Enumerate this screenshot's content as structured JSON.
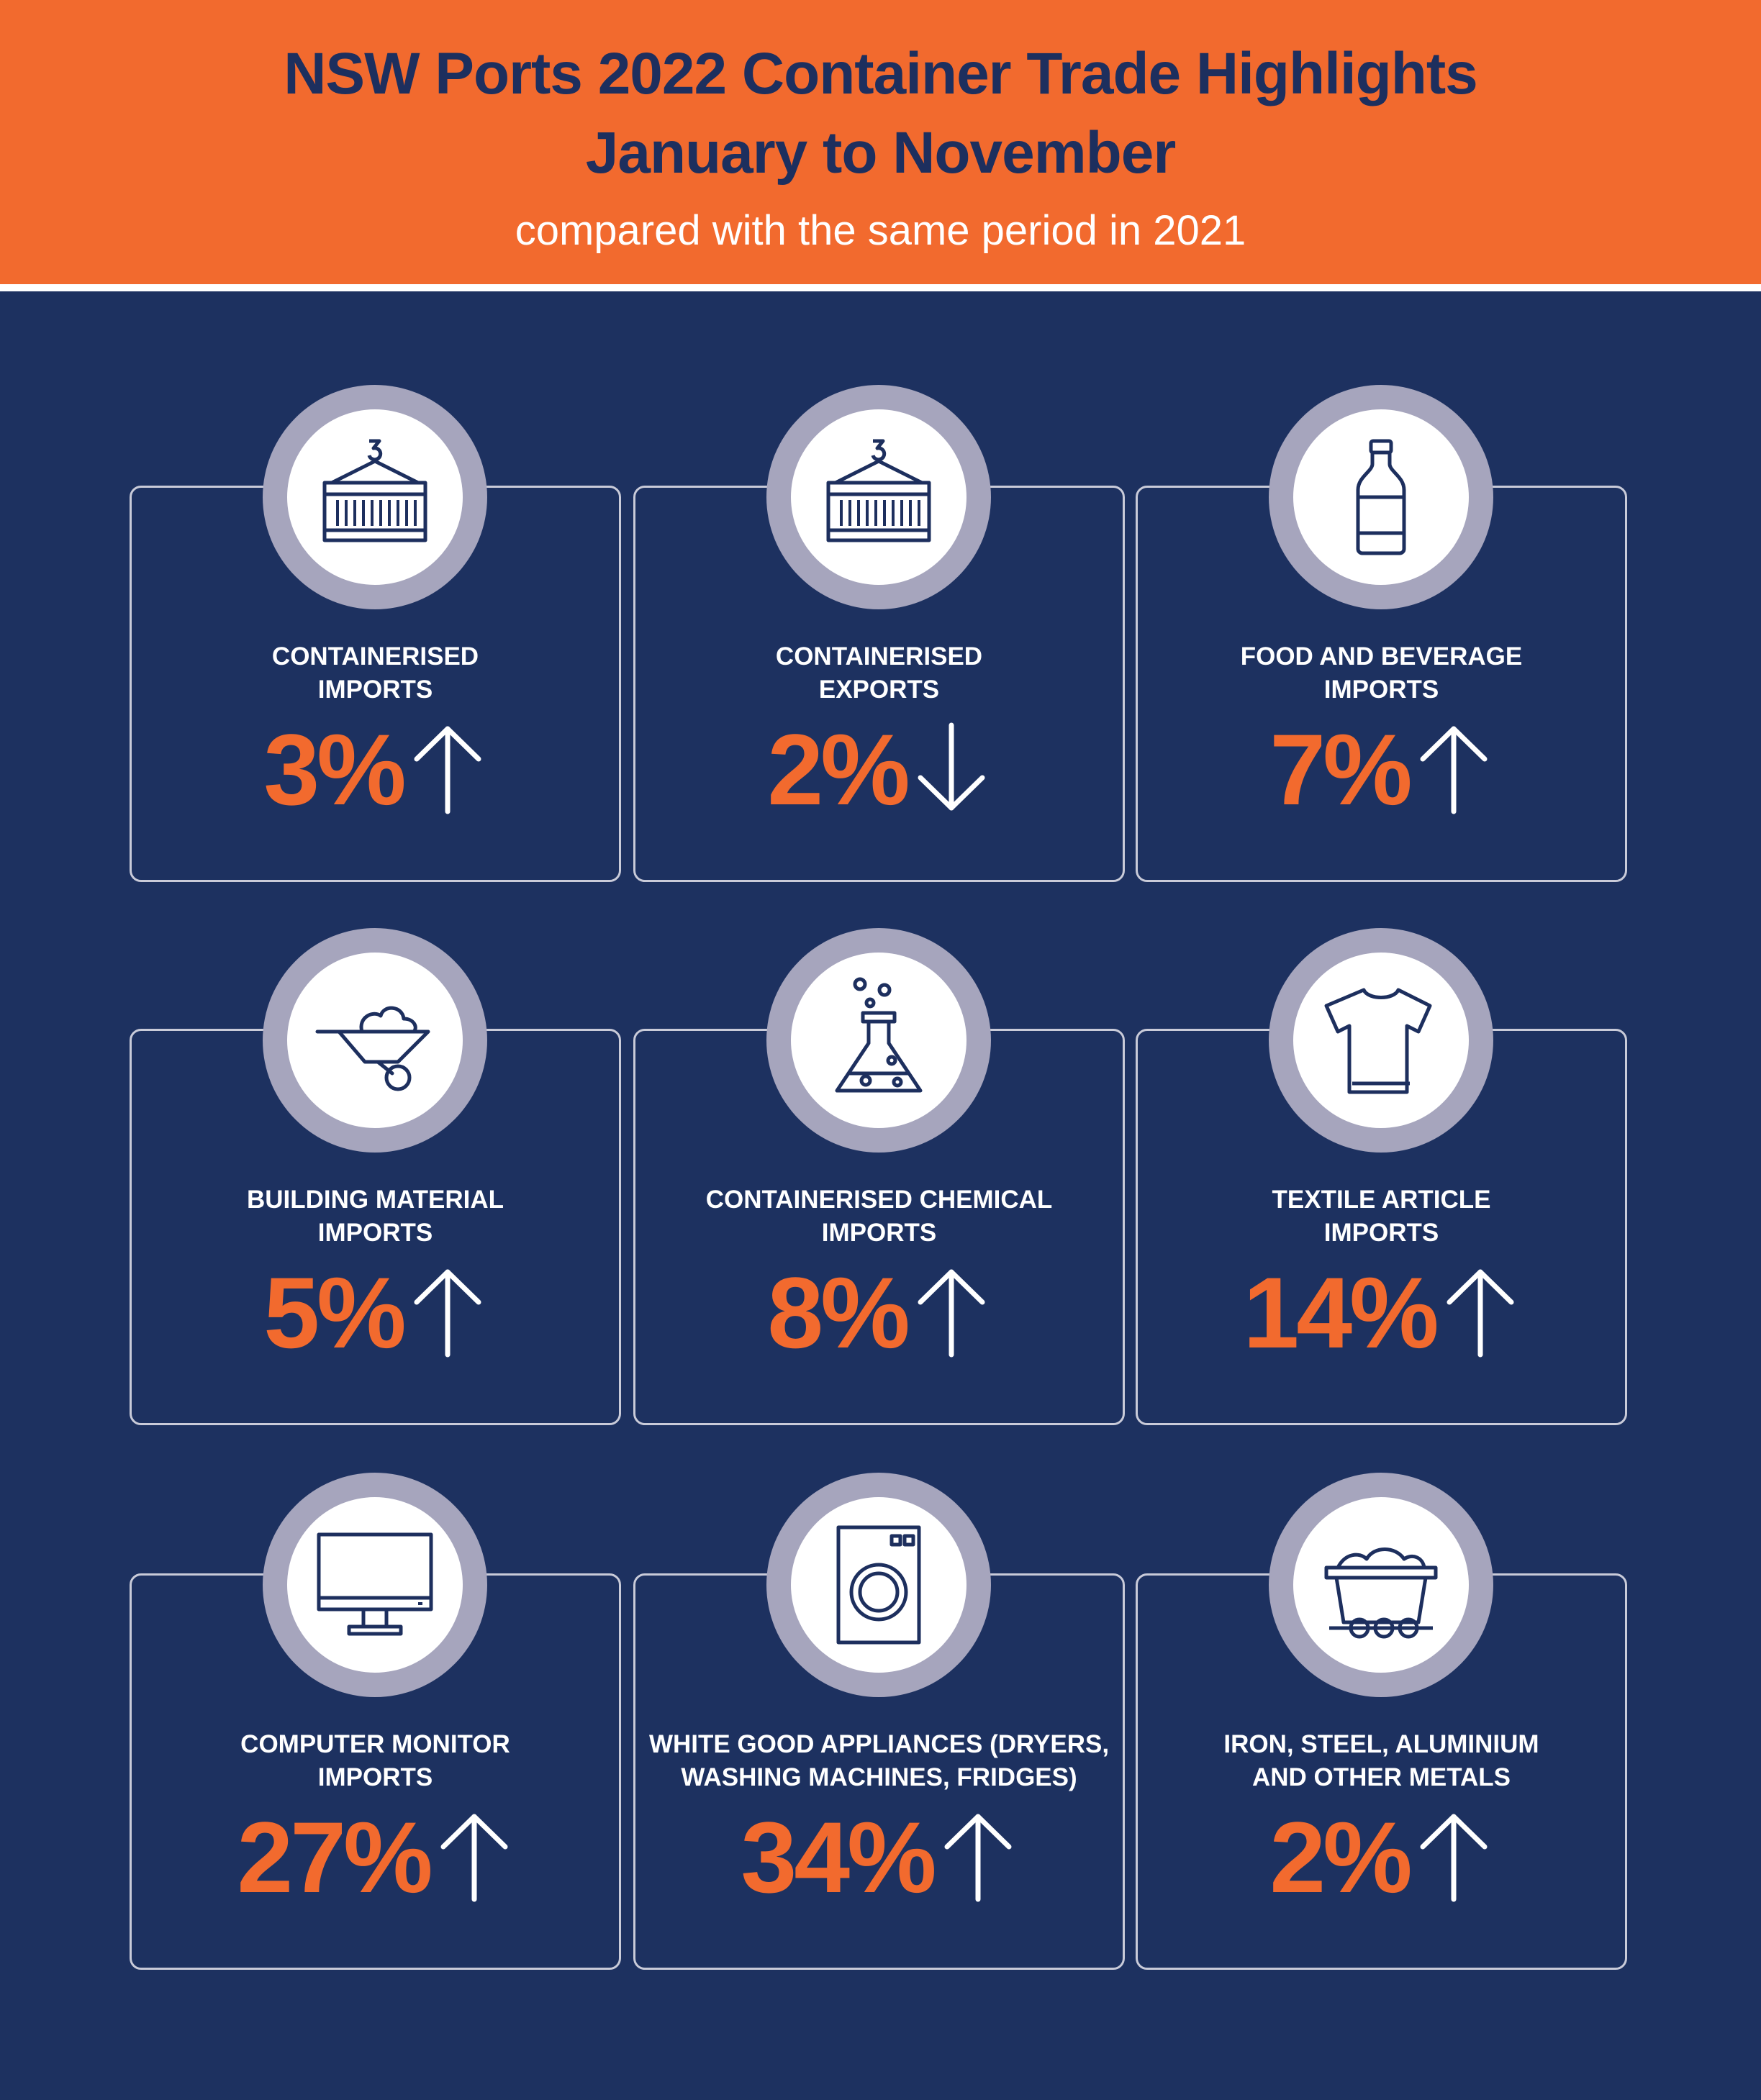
{
  "header": {
    "title_line1": "NSW Ports 2022 Container Trade Highlights",
    "title_line2": "January to November",
    "subtitle": "compared with the same period in 2021",
    "background_color": "#f26a2e",
    "title_color": "#1d2f5e"
  },
  "theme": {
    "panel_color": "#1d3160",
    "value_color": "#f26a2e",
    "ring_color": "#a6a5bd"
  },
  "cards": [
    {
      "label_line1": "CONTAINERISED",
      "label_line2": "IMPORTS",
      "value": "3%",
      "direction": "up",
      "icon": "shipping-container-icon"
    },
    {
      "label_line1": "CONTAINERISED",
      "label_line2": "EXPORTS",
      "value": "2%",
      "direction": "down",
      "icon": "shipping-container-icon"
    },
    {
      "label_line1": "FOOD AND BEVERAGE",
      "label_line2": "IMPORTS",
      "value": "7%",
      "direction": "up",
      "icon": "bottle-icon"
    },
    {
      "label_line1": "BUILDING MATERIAL",
      "label_line2": "IMPORTS",
      "value": "5%",
      "direction": "up",
      "icon": "wheelbarrow-icon"
    },
    {
      "label_line1": "CONTAINERISED CHEMICAL",
      "label_line2": "IMPORTS",
      "value": "8%",
      "direction": "up",
      "icon": "flask-icon"
    },
    {
      "label_line1": "TEXTILE ARTICLE",
      "label_line2": "IMPORTS",
      "value": "14%",
      "direction": "up",
      "icon": "tshirt-icon"
    },
    {
      "label_line1": "COMPUTER MONITOR",
      "label_line2": "IMPORTS",
      "value": "27%",
      "direction": "up",
      "icon": "monitor-icon"
    },
    {
      "label_line1": "WHITE GOOD APPLIANCES (DRYERS,",
      "label_line2": "WASHING MACHINES, FRIDGES)",
      "value": "34%",
      "direction": "up",
      "icon": "washing-machine-icon"
    },
    {
      "label_line1": "IRON, STEEL, ALUMINIUM",
      "label_line2": "AND OTHER METALS",
      "value": "2%",
      "direction": "up",
      "icon": "mine-cart-icon"
    }
  ]
}
